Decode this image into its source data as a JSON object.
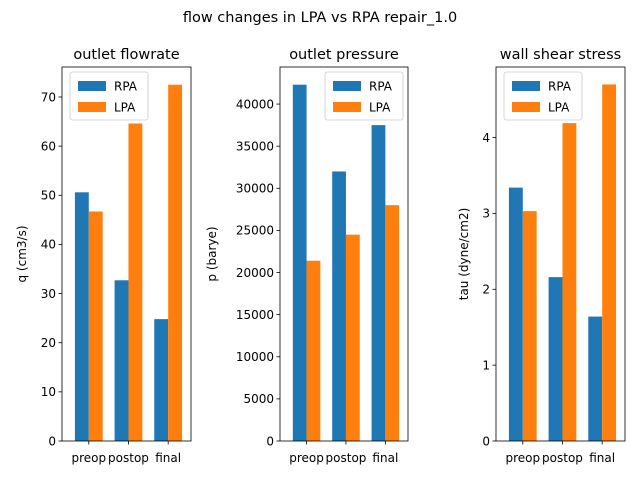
{
  "figure": {
    "title": "flow changes in LPA vs RPA repair_1.0"
  },
  "colors": {
    "RPA": "#1f77b4",
    "LPA": "#ff7f0e"
  },
  "chart_data": [
    {
      "type": "bar",
      "title": "outlet flowrate",
      "xlabel": "",
      "ylabel": "q (cm3/s)",
      "categories": [
        "preop",
        "postop",
        "final"
      ],
      "series": [
        {
          "name": "RPA",
          "values": [
            50.6,
            32.7,
            24.8
          ]
        },
        {
          "name": "LPA",
          "values": [
            46.7,
            64.6,
            72.5
          ]
        }
      ],
      "ylim": [
        0,
        76.1
      ],
      "yticks": [
        0,
        10,
        20,
        30,
        40,
        50,
        60,
        70
      ],
      "legend": "upper-left",
      "grid": false
    },
    {
      "type": "bar",
      "title": "outlet pressure",
      "xlabel": "",
      "ylabel": "p (barye)",
      "categories": [
        "preop",
        "postop",
        "final"
      ],
      "series": [
        {
          "name": "RPA",
          "values": [
            42300,
            32000,
            37500
          ]
        },
        {
          "name": "LPA",
          "values": [
            21400,
            24500,
            28000
          ]
        }
      ],
      "ylim": [
        0,
        44400
      ],
      "yticks": [
        0,
        5000,
        10000,
        15000,
        20000,
        25000,
        30000,
        35000,
        40000
      ],
      "legend": "top-right",
      "grid": false
    },
    {
      "type": "bar",
      "title": "wall shear stress",
      "xlabel": "",
      "ylabel": "tau (dyne/cm2)",
      "categories": [
        "preop",
        "postop",
        "final"
      ],
      "series": [
        {
          "name": "RPA",
          "values": [
            3.34,
            2.16,
            1.64
          ]
        },
        {
          "name": "LPA",
          "values": [
            3.03,
            4.19,
            4.7
          ]
        }
      ],
      "ylim": [
        0,
        4.93
      ],
      "yticks": [
        0,
        1,
        2,
        3,
        4
      ],
      "legend": "upper-left",
      "grid": false
    }
  ]
}
